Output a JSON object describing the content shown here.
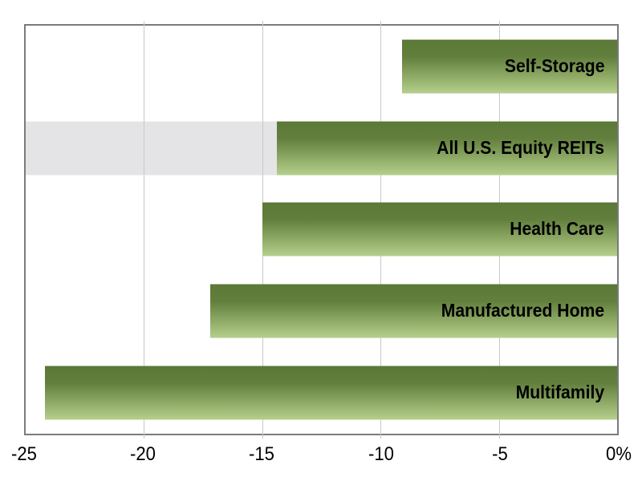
{
  "chart_data": {
    "type": "bar",
    "orientation": "horizontal",
    "title": "",
    "xlabel": "",
    "ylabel": "",
    "xlim": [
      -25,
      0
    ],
    "unit": "%",
    "grid": "vertical",
    "legend": "none",
    "categories": [
      "Self-Storage",
      "All U.S. Equity REITs",
      "Health Care",
      "Manufactured Home",
      "Multifamily"
    ],
    "values": [
      -9.1,
      -14.4,
      -15.0,
      -17.2,
      -24.2
    ],
    "highlighted_category": "All U.S. Equity REITs",
    "x_ticks": [
      {
        "value": -25,
        "label": "-25"
      },
      {
        "value": -20,
        "label": "-20"
      },
      {
        "value": -15,
        "label": "-15"
      },
      {
        "value": -10,
        "label": "-10"
      },
      {
        "value": -5,
        "label": "-5"
      },
      {
        "value": 0,
        "label": "0%"
      }
    ],
    "gridline_values": [
      -20,
      -15,
      -10,
      -5
    ],
    "colors": {
      "bar_gradient_top": "#5a7836",
      "bar_gradient_mid": "#637f3d",
      "bar_gradient_low": "#9cb873",
      "bar_gradient_bottom": "#b5cf8d",
      "highlight_band": "#e4e4e6",
      "gridline": "#c9c9c9",
      "plot_border": "#7b7b7b",
      "label_text": "#000000",
      "background": "#ffffff"
    }
  }
}
